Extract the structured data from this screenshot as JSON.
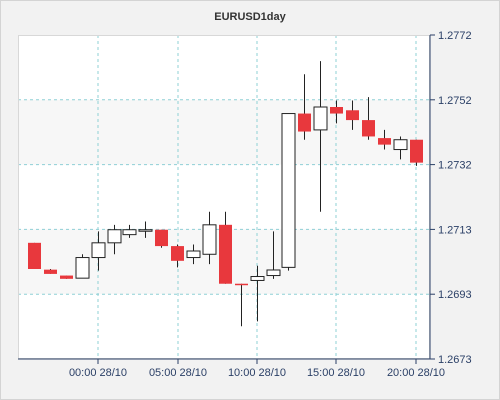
{
  "chart_data": {
    "type": "candlestick",
    "title": "EURUSD1day",
    "y_ticks": [
      "1.2772",
      "1.2752",
      "1.2732",
      "1.2713",
      "1.2693",
      "1.2673"
    ],
    "x_ticks": [
      "00:00 28/10",
      "05:00 28/10",
      "10:00 28/10",
      "15:00 28/10",
      "20:00 28/10"
    ],
    "ylim": [
      1.2673,
      1.2772
    ],
    "grid": true,
    "colors": {
      "up": "#ffffff",
      "down": "#e8383d",
      "outline": "#222222",
      "grid": "#8fd0d6",
      "axis": "#2a3f66"
    },
    "candles": [
      {
        "o": 1.27085,
        "h": 1.27085,
        "l": 1.27005,
        "c": 1.27005
      },
      {
        "o": 1.27003,
        "h": 1.27005,
        "l": 1.2699,
        "c": 1.2699
      },
      {
        "o": 1.26985,
        "h": 1.26985,
        "l": 1.26975,
        "c": 1.26975
      },
      {
        "o": 1.26977,
        "h": 1.2705,
        "l": 1.26977,
        "c": 1.2704
      },
      {
        "o": 1.2704,
        "h": 1.2712,
        "l": 1.27,
        "c": 1.27085
      },
      {
        "o": 1.27085,
        "h": 1.2714,
        "l": 1.2705,
        "c": 1.27125
      },
      {
        "o": 1.2711,
        "h": 1.2714,
        "l": 1.271,
        "c": 1.27125
      },
      {
        "o": 1.27125,
        "h": 1.2715,
        "l": 1.271,
        "c": 1.27125
      },
      {
        "o": 1.27125,
        "h": 1.27125,
        "l": 1.2707,
        "c": 1.27075
      },
      {
        "o": 1.27075,
        "h": 1.2708,
        "l": 1.2701,
        "c": 1.2703
      },
      {
        "o": 1.2704,
        "h": 1.2708,
        "l": 1.2702,
        "c": 1.2706
      },
      {
        "o": 1.2705,
        "h": 1.2718,
        "l": 1.2702,
        "c": 1.2714
      },
      {
        "o": 1.2714,
        "h": 1.2718,
        "l": 1.2696,
        "c": 1.2696
      },
      {
        "o": 1.2696,
        "h": 1.2696,
        "l": 1.2683,
        "c": 1.26958
      },
      {
        "o": 1.2697,
        "h": 1.27015,
        "l": 1.26845,
        "c": 1.26982
      },
      {
        "o": 1.26985,
        "h": 1.2712,
        "l": 1.26975,
        "c": 1.27002
      },
      {
        "o": 1.2701,
        "h": 1.2748,
        "l": 1.27,
        "c": 1.2748
      },
      {
        "o": 1.2748,
        "h": 1.276,
        "l": 1.274,
        "c": 1.27425
      },
      {
        "o": 1.2743,
        "h": 1.2764,
        "l": 1.2718,
        "c": 1.275
      },
      {
        "o": 1.275,
        "h": 1.2752,
        "l": 1.2745,
        "c": 1.2748
      },
      {
        "o": 1.2749,
        "h": 1.2752,
        "l": 1.2743,
        "c": 1.2746
      },
      {
        "o": 1.2746,
        "h": 1.2753,
        "l": 1.274,
        "c": 1.2741
      },
      {
        "o": 1.27405,
        "h": 1.2743,
        "l": 1.2737,
        "c": 1.27385
      },
      {
        "o": 1.2737,
        "h": 1.2741,
        "l": 1.2734,
        "c": 1.274
      },
      {
        "o": 1.274,
        "h": 1.274,
        "l": 1.2732,
        "c": 1.2733
      }
    ]
  }
}
